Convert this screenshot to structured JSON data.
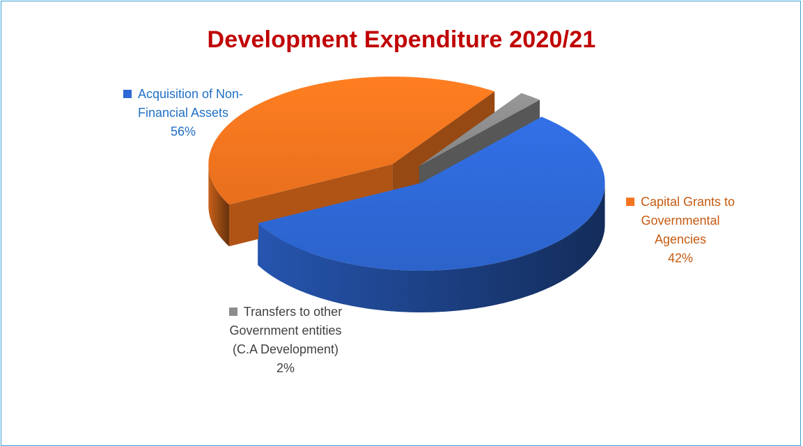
{
  "chart_data": {
    "type": "pie",
    "title": "Development Expenditure 2020/21",
    "labels_on_chart": true,
    "slices": [
      {
        "label_lines": [
          "Acquisition of Non-",
          "Financial Assets"
        ],
        "value": 56,
        "value_label": "56%",
        "color": "#2e68d6",
        "label_color": "#1f6fc5"
      },
      {
        "label_lines": [
          "Capital Grants to",
          "Governmental",
          "Agencies"
        ],
        "value": 42,
        "value_label": "42%",
        "color": "#f4751f",
        "label_color": "#c55a11"
      },
      {
        "label_lines": [
          "Transfers to other",
          "Government entities",
          "(C.A Development)"
        ],
        "value": 2,
        "value_label": "2%",
        "color": "#8c8c8c",
        "label_color": "#404040"
      }
    ]
  }
}
